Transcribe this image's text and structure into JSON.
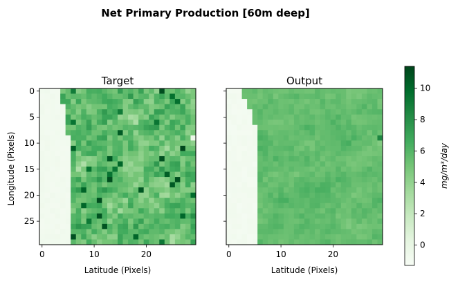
{
  "chart_data": {
    "type": "heatmap",
    "title": "Net Primary Production [60m deep]",
    "colormap": "Greens",
    "panels": [
      {
        "title": "Target",
        "xlabel": "Latitude (Pixels)",
        "ylabel": "Longitude (Pixels)",
        "xticks": [
          0,
          10,
          20
        ],
        "yticks": [
          0,
          5,
          10,
          15,
          20,
          25
        ],
        "grid_size": [
          30,
          30
        ],
        "seed": 7,
        "land_boundary": [
          4,
          4,
          4,
          5,
          5,
          5,
          5,
          5,
          5,
          6,
          6,
          6,
          6,
          6,
          6,
          6,
          6,
          6,
          6,
          6,
          6,
          6,
          6,
          6,
          6,
          6,
          6,
          6,
          6,
          6
        ],
        "land_value": -0.8,
        "water_mean": 5.6,
        "water_spread": 2.2
      },
      {
        "title": "Output",
        "xlabel": "Latitude (Pixels)",
        "ylabel": "",
        "xticks": [
          0,
          10,
          20
        ],
        "yticks": [
          0,
          5,
          10,
          15,
          20,
          25
        ],
        "grid_size": [
          30,
          30
        ],
        "seed": 11,
        "land_boundary": [
          3,
          3,
          4,
          4,
          5,
          5,
          5,
          6,
          6,
          6,
          6,
          6,
          6,
          6,
          6,
          6,
          6,
          6,
          6,
          6,
          6,
          6,
          6,
          6,
          6,
          6,
          6,
          6,
          6,
          6
        ],
        "land_value": -0.9,
        "water_mean": 5.5,
        "water_spread": 0.9
      }
    ],
    "colorbar": {
      "label": "mg/m³/day",
      "range": [
        -1.3,
        11.4
      ],
      "ticks": [
        0,
        2,
        4,
        6,
        8,
        10
      ]
    }
  }
}
